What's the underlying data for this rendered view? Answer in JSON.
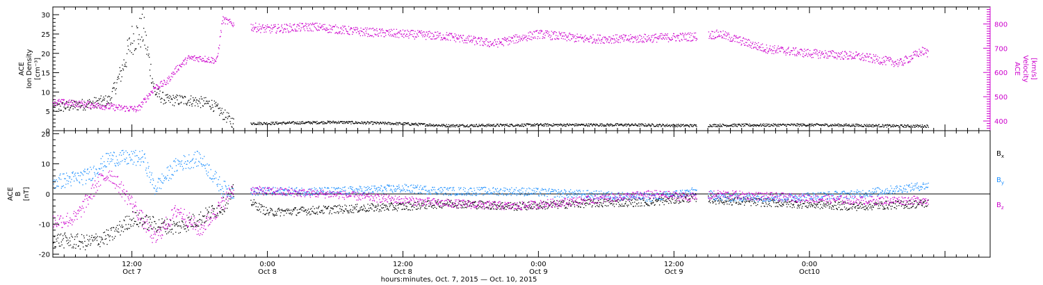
{
  "chart_data": [
    {
      "type": "scatter",
      "panel": "top",
      "ylabel": [
        "ACE",
        "Ion Density",
        "[cm⁻³]"
      ],
      "ylim": [
        0,
        32
      ],
      "yticks": [
        0,
        5,
        10,
        15,
        20,
        25,
        30
      ],
      "right_axis": {
        "label": [
          "ACE",
          "Velocity",
          "[km/s]"
        ],
        "ylim": [
          360,
          870
        ],
        "ticks": [
          400,
          500,
          600,
          700,
          800
        ],
        "color": "#cc00cc"
      },
      "x_range_hours": [
        5,
        88
      ],
      "data_end_hour": 82.5,
      "gaps_hours": [
        [
          21,
          22.5
        ],
        [
          62,
          63
        ]
      ],
      "series": [
        {
          "name": "",
          "color": "#000000",
          "axis": "left",
          "x": [
            5,
            8,
            10,
            11,
            12,
            13,
            14,
            15,
            17,
            19,
            21,
            24,
            30,
            36,
            40,
            48,
            56,
            62,
            64,
            72,
            76,
            80,
            82.5
          ],
          "y": [
            6,
            7,
            8,
            15,
            24,
            26,
            10,
            8,
            8,
            7,
            2,
            2,
            2.3,
            1.9,
            1.4,
            1.6,
            1.6,
            1.4,
            1.5,
            1.6,
            1.5,
            1.3,
            1.3
          ]
        },
        {
          "name": "",
          "color": "#cc00cc",
          "axis": "right",
          "x": [
            5,
            8,
            11,
            12.5,
            14,
            15,
            16,
            17,
            18,
            19.5,
            20,
            21,
            24,
            28,
            32,
            36,
            40,
            44,
            48,
            52,
            56,
            62,
            64,
            66,
            68,
            72,
            76,
            80,
            82,
            82.5
          ],
          "y": [
            480,
            470,
            455,
            450,
            540,
            560,
            620,
            660,
            660,
            650,
            820,
            800,
            780,
            790,
            770,
            760,
            750,
            720,
            760,
            740,
            740,
            750,
            760,
            730,
            700,
            680,
            670,
            640,
            690,
            680
          ]
        }
      ]
    },
    {
      "type": "scatter",
      "panel": "bottom",
      "ylabel": [
        "ACE",
        "B",
        "[nT]"
      ],
      "ylim": [
        -21,
        21
      ],
      "yticks": [
        -20,
        -10,
        0,
        10,
        20
      ],
      "zero_line": true,
      "legend": [
        "B",
        "B",
        "B"
      ],
      "legend_subscripts": [
        "x",
        "y",
        "z"
      ],
      "legend_placement": "right",
      "x_range_hours": [
        5,
        88
      ],
      "gaps_hours": [
        [
          21,
          22.5
        ],
        [
          62,
          63
        ]
      ],
      "series": [
        {
          "name": "B",
          "subscript": "x",
          "color": "#000000",
          "x": [
            5,
            8,
            10,
            12,
            14,
            16,
            18,
            20,
            21,
            24,
            30,
            36,
            40,
            46,
            52,
            58,
            62,
            64,
            70,
            76,
            82.5
          ],
          "y": [
            -15,
            -16,
            -14,
            -8,
            -10,
            -11,
            -8,
            -4,
            1,
            -6,
            -5,
            -4,
            -3,
            -4,
            -3,
            -2.5,
            -1,
            -2,
            -3,
            -4,
            -3
          ]
        },
        {
          "name": "B",
          "subscript": "y",
          "color": "#1e90ff",
          "x": [
            5,
            8,
            10,
            12,
            13,
            14,
            16,
            18,
            20,
            21,
            24,
            30,
            36,
            40,
            46,
            52,
            58,
            62,
            64,
            70,
            76,
            82.5
          ],
          "y": [
            4,
            6,
            12,
            12,
            12,
            2,
            10,
            12,
            2,
            1,
            1,
            1,
            2,
            1,
            1,
            0,
            -1,
            1,
            -1,
            -1,
            0,
            3
          ]
        },
        {
          "name": "B",
          "subscript": "z",
          "color": "#cc00cc",
          "x": [
            5,
            7,
            9,
            10,
            12,
            14,
            16,
            18,
            20,
            21,
            24,
            30,
            36,
            40,
            46,
            52,
            58,
            62,
            64,
            70,
            76,
            82.5
          ],
          "y": [
            -9,
            -8,
            4,
            7,
            -3,
            -15,
            -5,
            -12,
            -3,
            2,
            1,
            0,
            -2,
            -3,
            -4,
            -2,
            0,
            -1,
            0,
            -1,
            -2,
            -2
          ]
        }
      ]
    }
  ],
  "xaxis": {
    "tick_labels": [
      {
        "time": "12:00",
        "date": "Oct 7",
        "hour": 12
      },
      {
        "time": "0:00",
        "date": "Oct 8",
        "hour": 24
      },
      {
        "time": "12:00",
        "date": "Oct 8",
        "hour": 36
      },
      {
        "time": "0:00",
        "date": "Oct 9",
        "hour": 48
      },
      {
        "time": "12:00",
        "date": "Oct 9",
        "hour": 60
      },
      {
        "time": "0:00",
        "date": "Oct10",
        "hour": 72
      }
    ],
    "title": "hours:minutes, Oct.  7, 2015 — Oct. 10, 2015"
  }
}
